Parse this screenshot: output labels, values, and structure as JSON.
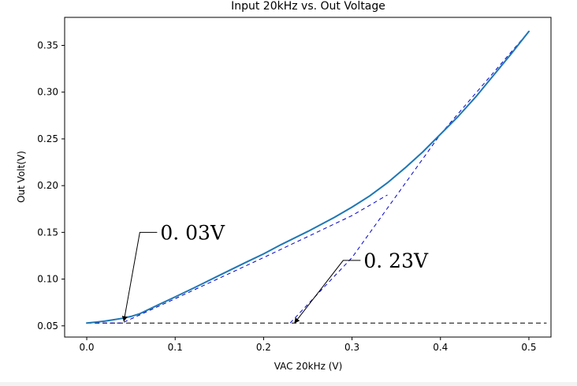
{
  "chart_data": {
    "type": "line",
    "title": "Input 20kHz vs. Out Voltage",
    "xlabel": "VAC 20kHz (V)",
    "ylabel": "Out Volt(V)",
    "xlim": [
      -0.025,
      0.525
    ],
    "ylim": [
      0.038,
      0.38
    ],
    "xticks": [
      0.0,
      0.1,
      0.2,
      0.3,
      0.4,
      0.5
    ],
    "xtick_labels": [
      "0.0",
      "0.1",
      "0.2",
      "0.3",
      "0.4",
      "0.5"
    ],
    "yticks": [
      0.05,
      0.1,
      0.15,
      0.2,
      0.25,
      0.3,
      0.35
    ],
    "ytick_labels": [
      "0.05",
      "0.10",
      "0.15",
      "0.20",
      "0.25",
      "0.30",
      "0.35"
    ],
    "grid": false,
    "series": [
      {
        "name": "Out Voltage",
        "color": "#1f77b4",
        "x": [
          0.0,
          0.01,
          0.02,
          0.03,
          0.04,
          0.05,
          0.06,
          0.08,
          0.1,
          0.12,
          0.15,
          0.18,
          0.2,
          0.22,
          0.25,
          0.28,
          0.3,
          0.32,
          0.34,
          0.36,
          0.38,
          0.4,
          0.42,
          0.44,
          0.46,
          0.48,
          0.5
        ],
        "y": [
          0.053,
          0.054,
          0.055,
          0.0565,
          0.058,
          0.06,
          0.063,
          0.072,
          0.081,
          0.09,
          0.104,
          0.118,
          0.127,
          0.137,
          0.151,
          0.166,
          0.177,
          0.189,
          0.203,
          0.219,
          0.236,
          0.255,
          0.274,
          0.295,
          0.318,
          0.341,
          0.365
        ]
      }
    ],
    "reference_lines": [
      {
        "name": "baseline",
        "style": "dashed",
        "color": "#000000",
        "x": [
          0.0,
          0.52
        ],
        "y": [
          0.053,
          0.053
        ]
      },
      {
        "name": "tangent-low",
        "style": "dashed",
        "color": "#0000cc",
        "x": [
          0.01,
          0.04,
          0.1,
          0.2,
          0.3,
          0.34
        ],
        "y": [
          0.053,
          0.053,
          0.079,
          0.123,
          0.168,
          0.19
        ]
      },
      {
        "name": "tangent-high",
        "style": "dashed",
        "color": "#0000cc",
        "x": [
          0.23,
          0.3,
          0.4,
          0.5
        ],
        "y": [
          0.053,
          0.123,
          0.255,
          0.365
        ]
      }
    ],
    "annotations": [
      {
        "text": "0. 03V",
        "point": [
          0.042,
          0.055
        ],
        "label_anchor": [
          0.06,
          0.15
        ]
      },
      {
        "text": "0. 23V",
        "point": [
          0.235,
          0.053
        ],
        "label_anchor": [
          0.29,
          0.12
        ]
      }
    ]
  }
}
